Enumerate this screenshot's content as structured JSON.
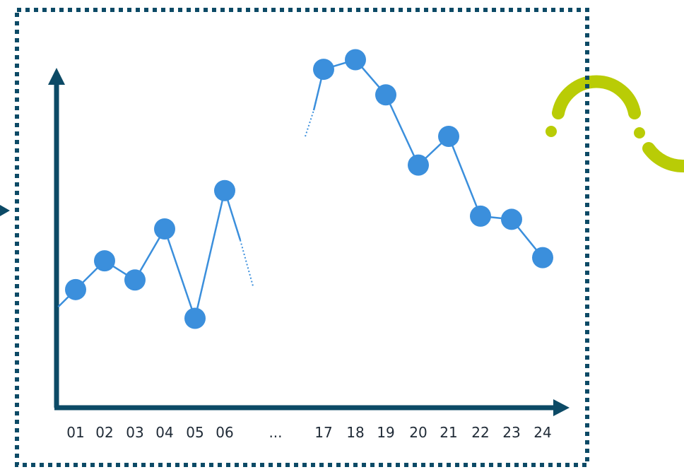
{
  "chart_data": {
    "type": "line",
    "title": "",
    "xlabel": "",
    "ylabel": "",
    "ellipsis": "...",
    "categories": [
      "01",
      "02",
      "03",
      "04",
      "05",
      "06",
      "17",
      "18",
      "19",
      "20",
      "21",
      "22",
      "23",
      "24"
    ],
    "series": [
      {
        "segments": [
          {
            "x": [
              "01",
              "02",
              "03",
              "04",
              "05",
              "06"
            ],
            "values": [
              3.7,
              4.6,
              4.0,
              5.6,
              2.8,
              6.8
            ]
          },
          {
            "x": [
              "17",
              "18",
              "19",
              "20",
              "21",
              "22",
              "23",
              "24"
            ],
            "values": [
              10.6,
              10.9,
              9.8,
              7.6,
              8.5,
              6.0,
              5.9,
              4.7
            ]
          }
        ]
      }
    ],
    "grid": false,
    "legend": "none",
    "colors": {
      "line": "#3b8fdc",
      "marker": "#3b8fdc",
      "axes": "#0c4a66",
      "frame": "#0c4a66",
      "decoration": "#b9cc06"
    }
  },
  "decorations": {
    "frame_style": "dotted",
    "left_arrow": "arrow-icon",
    "corner_decoration": "curved-arc-icon"
  }
}
